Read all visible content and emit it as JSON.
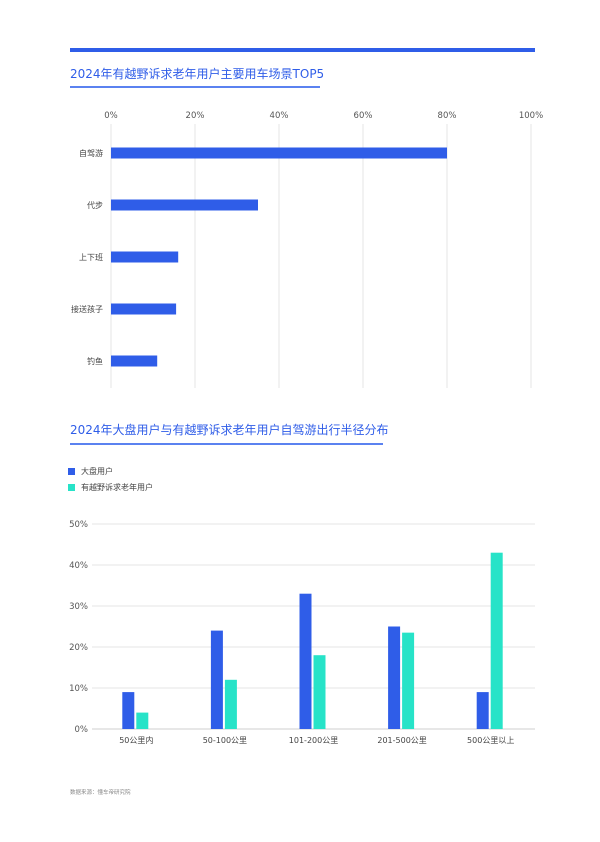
{
  "page": {
    "footer": "数据来源：懂车帝研究院",
    "colors": {
      "primary": "#2f5de8",
      "secondary": "#27e3c8"
    }
  },
  "chart_data": [
    {
      "type": "bar",
      "orientation": "horizontal",
      "title": "2024年有越野诉求老年用户主要用车场景TOP5",
      "categories": [
        "自驾游",
        "代步",
        "上下班",
        "接送孩子",
        "钓鱼"
      ],
      "values": [
        80,
        35,
        16,
        15.5,
        11
      ],
      "xlim": [
        0,
        100
      ],
      "xticks": [
        "0%",
        "20%",
        "40%",
        "60%",
        "80%",
        "100%"
      ],
      "grid": true
    },
    {
      "type": "bar",
      "title": "2024年大盘用户与有越野诉求老年用户自驾游出行半径分布",
      "categories": [
        "50公里内",
        "50-100公里",
        "101-200公里",
        "201-500公里",
        "500公里以上"
      ],
      "series": [
        {
          "name": "大盘用户",
          "values": [
            9,
            24,
            33,
            25,
            9
          ]
        },
        {
          "name": "有越野诉求老年用户",
          "values": [
            4,
            12,
            18,
            23.5,
            43
          ]
        }
      ],
      "ylim": [
        0,
        50
      ],
      "yticks": [
        "0%",
        "10%",
        "20%",
        "30%",
        "40%",
        "50%"
      ],
      "grid": true,
      "legend": "top-left"
    }
  ]
}
